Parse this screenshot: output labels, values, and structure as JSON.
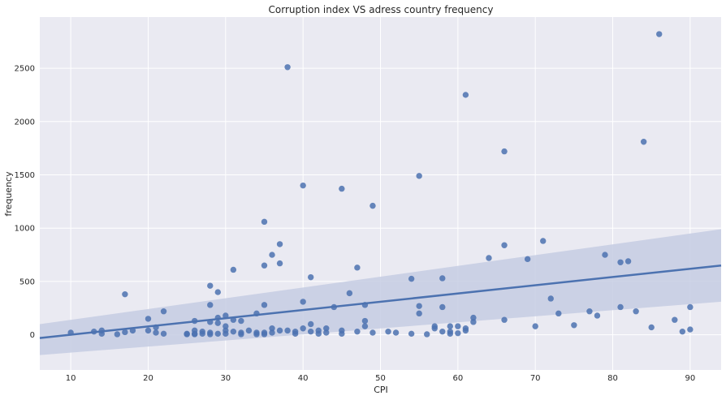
{
  "chart_data": {
    "type": "scatter",
    "title": "Corruption index VS adress country frequency",
    "xlabel": "CPI",
    "ylabel": "frequency",
    "xlim": [
      6,
      94
    ],
    "ylim": [
      -330,
      2980
    ],
    "xticks": [
      10,
      20,
      30,
      40,
      50,
      60,
      70,
      80,
      90
    ],
    "yticks": [
      0,
      500,
      1000,
      1500,
      2000,
      2500
    ],
    "grid": true,
    "colors": {
      "background": "#eaeaf2",
      "grid": "#ffffff",
      "points": "#4c72b0",
      "band": "#c5cde3"
    },
    "regression": {
      "x_range": [
        6,
        94
      ],
      "y_start": -30,
      "y_end": 650,
      "ci_lower_start": -190,
      "ci_lower_end": 310,
      "ci_upper_start": 100,
      "ci_upper_end": 990
    },
    "points": [
      [
        10,
        20
      ],
      [
        13,
        30
      ],
      [
        14,
        10
      ],
      [
        14,
        40
      ],
      [
        16,
        5
      ],
      [
        17,
        380
      ],
      [
        17,
        25
      ],
      [
        18,
        40
      ],
      [
        20,
        150
      ],
      [
        20,
        40
      ],
      [
        21,
        20
      ],
      [
        21,
        70
      ],
      [
        22,
        220
      ],
      [
        22,
        10
      ],
      [
        25,
        10
      ],
      [
        25,
        5
      ],
      [
        26,
        130
      ],
      [
        26,
        40
      ],
      [
        26,
        10
      ],
      [
        26,
        5
      ],
      [
        27,
        30
      ],
      [
        27,
        10
      ],
      [
        28,
        460
      ],
      [
        28,
        280
      ],
      [
        28,
        120
      ],
      [
        28,
        20
      ],
      [
        28,
        5
      ],
      [
        29,
        400
      ],
      [
        29,
        160
      ],
      [
        29,
        110
      ],
      [
        29,
        10
      ],
      [
        30,
        180
      ],
      [
        30,
        80
      ],
      [
        30,
        40
      ],
      [
        30,
        10
      ],
      [
        31,
        610
      ],
      [
        31,
        140
      ],
      [
        31,
        30
      ],
      [
        32,
        130
      ],
      [
        32,
        20
      ],
      [
        32,
        5
      ],
      [
        33,
        40
      ],
      [
        34,
        200
      ],
      [
        34,
        20
      ],
      [
        34,
        5
      ],
      [
        35,
        1060
      ],
      [
        35,
        650
      ],
      [
        35,
        280
      ],
      [
        35,
        20
      ],
      [
        35,
        5
      ],
      [
        36,
        750
      ],
      [
        36,
        60
      ],
      [
        36,
        20
      ],
      [
        37,
        850
      ],
      [
        37,
        670
      ],
      [
        37,
        40
      ],
      [
        38,
        2510
      ],
      [
        38,
        40
      ],
      [
        39,
        30
      ],
      [
        39,
        10
      ],
      [
        40,
        1400
      ],
      [
        40,
        310
      ],
      [
        40,
        60
      ],
      [
        41,
        540
      ],
      [
        41,
        100
      ],
      [
        41,
        30
      ],
      [
        42,
        40
      ],
      [
        42,
        10
      ],
      [
        43,
        60
      ],
      [
        43,
        20
      ],
      [
        44,
        260
      ],
      [
        45,
        1370
      ],
      [
        45,
        40
      ],
      [
        45,
        10
      ],
      [
        46,
        390
      ],
      [
        47,
        630
      ],
      [
        47,
        30
      ],
      [
        48,
        280
      ],
      [
        48,
        130
      ],
      [
        48,
        80
      ],
      [
        49,
        1210
      ],
      [
        49,
        20
      ],
      [
        51,
        30
      ],
      [
        52,
        20
      ],
      [
        54,
        525
      ],
      [
        54,
        10
      ],
      [
        55,
        1490
      ],
      [
        55,
        270
      ],
      [
        55,
        200
      ],
      [
        56,
        5
      ],
      [
        57,
        80
      ],
      [
        57,
        60
      ],
      [
        58,
        530
      ],
      [
        58,
        260
      ],
      [
        58,
        30
      ],
      [
        59,
        80
      ],
      [
        59,
        30
      ],
      [
        59,
        10
      ],
      [
        60,
        80
      ],
      [
        60,
        15
      ],
      [
        61,
        2250
      ],
      [
        61,
        60
      ],
      [
        61,
        40
      ],
      [
        62,
        160
      ],
      [
        62,
        120
      ],
      [
        64,
        720
      ],
      [
        66,
        1720
      ],
      [
        66,
        840
      ],
      [
        66,
        140
      ],
      [
        69,
        710
      ],
      [
        70,
        80
      ],
      [
        71,
        880
      ],
      [
        72,
        340
      ],
      [
        73,
        200
      ],
      [
        75,
        90
      ],
      [
        77,
        220
      ],
      [
        78,
        180
      ],
      [
        79,
        750
      ],
      [
        81,
        680
      ],
      [
        81,
        260
      ],
      [
        82,
        690
      ],
      [
        83,
        220
      ],
      [
        84,
        1810
      ],
      [
        85,
        70
      ],
      [
        86,
        2820
      ],
      [
        88,
        140
      ],
      [
        89,
        30
      ],
      [
        90,
        260
      ],
      [
        90,
        50
      ]
    ]
  }
}
